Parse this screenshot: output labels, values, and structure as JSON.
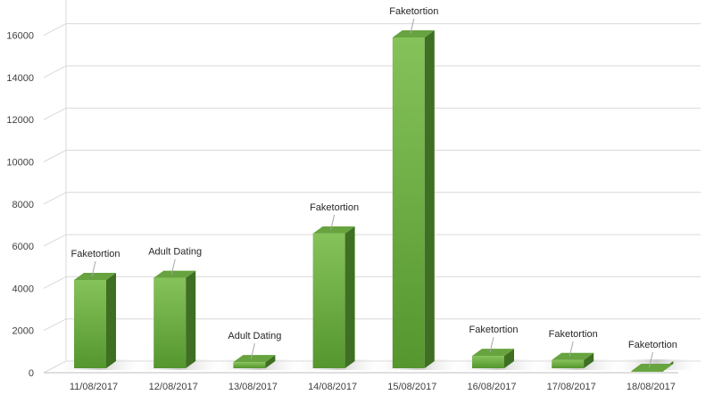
{
  "chart_data": {
    "type": "bar",
    "title": "",
    "xlabel": "",
    "ylabel": "",
    "ylim": [
      0,
      17000
    ],
    "yticks": [
      0,
      2000,
      4000,
      6000,
      8000,
      10000,
      12000,
      14000,
      16000
    ],
    "grid": true,
    "legend": "none",
    "style": "3d-column",
    "categories": [
      "11/08/2017",
      "12/08/2017",
      "13/08/2017",
      "14/08/2017",
      "15/08/2017",
      "16/08/2017",
      "17/08/2017",
      "18/08/2017"
    ],
    "values": [
      4400,
      4500,
      500,
      6600,
      15900,
      800,
      600,
      50
    ],
    "data_labels": [
      "Faketortion",
      "Adult Dating",
      "Adult Dating",
      "Faketortion",
      "Faketortion",
      "Faketortion",
      "Faketortion",
      "Faketortion"
    ],
    "colors": {
      "bar_front_light": "#7dbb53",
      "bar_front_dark": "#5a9a35",
      "bar_side": "#3f6f22",
      "bar_top": "#67a33e",
      "shadow": "#d9d9d9",
      "grid": "#d9d9d9",
      "text": "#404040"
    }
  }
}
